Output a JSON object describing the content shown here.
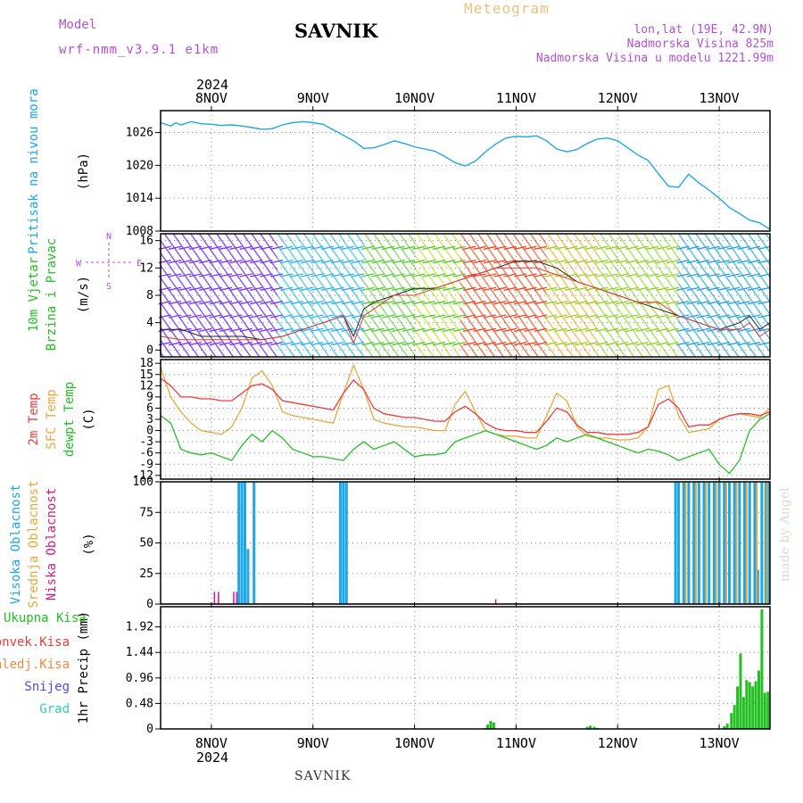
{
  "header": {
    "model_label": "Model",
    "model_name": "wrf-nmm_v3.9.1 e1km",
    "station": "SAVNIK",
    "product": "Meteogram",
    "location": "lon,lat (19E, 42.9N)",
    "elevation": "Nadmorska Visina 825m",
    "model_elevation": "Nadmorska Visina u modelu 1221.99m"
  },
  "footer": {
    "station": "SAVNIK",
    "credit": "made by Angel"
  },
  "colors": {
    "pressure": "#1ea7e8",
    "temp2m": "#ef3b3b",
    "sfc_temp": "#e6a83a",
    "dewpt": "#22c022",
    "cloud_high": "#1ea7e8",
    "cloud_mid": "#e6a83a",
    "cloud_low": "#d01a8a",
    "precip_total": "#22c022",
    "violet": "#b24fd6"
  },
  "chart_data": [
    {
      "id": "pressure",
      "type": "line",
      "ylabel": [
        "Pritisak na nivou mora",
        "(hPa)"
      ],
      "yticks": [
        1008,
        1014,
        1020,
        1026
      ],
      "ylim": [
        1008,
        1030
      ],
      "grid": true,
      "x": [
        7.5,
        7.6,
        7.65,
        7.7,
        7.8,
        7.9,
        8.0,
        8.1,
        8.2,
        8.3,
        8.4,
        8.5,
        8.6,
        8.7,
        8.8,
        8.9,
        9.0,
        9.1,
        9.2,
        9.3,
        9.4,
        9.5,
        9.6,
        9.7,
        9.8,
        9.9,
        10.0,
        10.1,
        10.2,
        10.3,
        10.4,
        10.5,
        10.6,
        10.7,
        10.8,
        10.9,
        11.0,
        11.1,
        11.2,
        11.3,
        11.4,
        11.5,
        11.6,
        11.7,
        11.8,
        11.9,
        12.0,
        12.1,
        12.2,
        12.3,
        12.4,
        12.5,
        12.6,
        12.7,
        12.8,
        12.9,
        13.0,
        13.1,
        13.2,
        13.3,
        13.4,
        13.5
      ],
      "values": [
        1027.8,
        1027.2,
        1027.8,
        1027.4,
        1028.0,
        1027.6,
        1027.5,
        1027.3,
        1027.4,
        1027.2,
        1026.9,
        1026.6,
        1026.7,
        1027.4,
        1027.8,
        1028.0,
        1027.8,
        1027.5,
        1026.5,
        1025.5,
        1024.5,
        1023.1,
        1023.2,
        1023.8,
        1024.5,
        1024.0,
        1023.4,
        1023.0,
        1022.6,
        1021.6,
        1020.5,
        1019.9,
        1020.8,
        1022.5,
        1023.9,
        1025.0,
        1025.3,
        1025.2,
        1025.4,
        1024.5,
        1023.0,
        1022.5,
        1022.9,
        1024.0,
        1024.8,
        1025.0,
        1024.5,
        1023.2,
        1021.9,
        1020.9,
        1018.5,
        1016.2,
        1016.0,
        1018.4,
        1016.8,
        1015.5,
        1014.0,
        1012.3,
        1011.2,
        1010.0,
        1009.5,
        1008.3
      ]
    },
    {
      "id": "wind",
      "type": "line",
      "ylabel": [
        "10m Vjetar",
        "Brzina i Pravac",
        "(m/s)"
      ],
      "legend": [
        "N",
        "S",
        "W",
        "E"
      ],
      "yticks": [
        0,
        4,
        8,
        12,
        16
      ],
      "ylim": [
        -1,
        17
      ],
      "grid": true,
      "x": [
        7.5,
        7.7,
        7.9,
        8.1,
        8.3,
        8.5,
        8.7,
        8.9,
        9.1,
        9.3,
        9.4,
        9.5,
        9.6,
        9.8,
        10.0,
        10.2,
        10.4,
        10.6,
        10.8,
        11.0,
        11.2,
        11.4,
        11.6,
        11.8,
        12.0,
        12.2,
        12.4,
        12.6,
        12.8,
        13.0,
        13.2,
        13.3,
        13.4,
        13.5
      ],
      "speed": [
        3,
        3,
        2,
        2,
        2,
        1.5,
        2,
        3,
        4,
        5,
        2,
        6,
        7,
        8,
        9,
        9,
        10,
        11,
        12,
        13,
        13,
        12,
        10,
        9,
        8,
        7,
        6,
        5,
        4,
        3,
        4,
        5,
        3,
        4
      ],
      "gust": [
        2,
        1.5,
        1.5,
        1.5,
        1.5,
        1.5,
        2,
        3,
        4,
        5,
        1,
        5,
        6,
        8,
        8,
        9,
        10,
        11,
        12,
        12,
        12,
        11,
        10,
        9,
        8,
        7,
        7,
        5,
        4,
        3,
        3,
        4,
        2,
        3
      ]
    },
    {
      "id": "temperature",
      "type": "line",
      "ylabel": [
        "2m Temp",
        "SFC Temp",
        "dewpt Temp",
        "(C)"
      ],
      "yticks": [
        -12,
        -9,
        -6,
        -3,
        0,
        3,
        6,
        9,
        12,
        15,
        18
      ],
      "ylim": [
        -13,
        19
      ],
      "grid": true,
      "x": [
        7.5,
        7.6,
        7.7,
        7.8,
        7.9,
        8.0,
        8.1,
        8.2,
        8.3,
        8.4,
        8.5,
        8.6,
        8.7,
        8.8,
        8.9,
        9.0,
        9.1,
        9.2,
        9.3,
        9.4,
        9.5,
        9.6,
        9.7,
        9.8,
        9.9,
        10.0,
        10.1,
        10.2,
        10.3,
        10.4,
        10.5,
        10.6,
        10.7,
        10.8,
        10.9,
        11.0,
        11.1,
        11.2,
        11.3,
        11.4,
        11.5,
        11.6,
        11.7,
        11.8,
        11.9,
        12.0,
        12.1,
        12.2,
        12.3,
        12.4,
        12.5,
        12.6,
        12.7,
        12.8,
        12.9,
        13.0,
        13.1,
        13.2,
        13.3,
        13.4,
        13.5
      ],
      "series": [
        {
          "name": "2m Temp",
          "values": [
            14,
            12,
            9,
            9,
            8.5,
            8.5,
            8,
            8,
            10,
            12,
            12.5,
            11,
            8,
            7.5,
            7,
            6.5,
            6,
            5.5,
            10,
            13.5,
            11,
            6,
            4.5,
            4,
            3.5,
            3.5,
            3,
            2.5,
            2.5,
            5,
            6.5,
            4.5,
            2,
            0.5,
            0,
            0,
            -0.5,
            -0.5,
            2.5,
            6,
            5,
            1.5,
            -0.5,
            -0.5,
            -1,
            -1,
            -1,
            -0.5,
            1,
            7,
            8.5,
            6,
            1,
            1.5,
            1.5,
            3,
            4,
            4.5,
            4.5,
            4,
            5
          ]
        },
        {
          "name": "SFC Temp",
          "values": [
            17,
            9,
            5,
            2,
            0,
            -0.5,
            -1,
            1,
            6,
            14,
            16,
            12,
            5,
            4,
            3.5,
            3,
            2.5,
            2,
            10,
            17.5,
            11,
            3,
            2,
            1.5,
            1,
            1,
            0.5,
            0,
            0,
            7,
            10.5,
            5,
            0,
            -1,
            -1.5,
            -1.5,
            -2,
            -2,
            4,
            10,
            8,
            1,
            -1.5,
            -2,
            -2,
            -2.5,
            -2.5,
            -2,
            1,
            11,
            12,
            4,
            -0.5,
            0,
            0.5,
            3,
            4,
            4.5,
            4,
            3.5,
            6
          ]
        },
        {
          "name": "dewpt Temp",
          "values": [
            4,
            2,
            -5,
            -6,
            -6.5,
            -6,
            -7,
            -8,
            -4,
            -1,
            -3,
            0,
            -2,
            -5,
            -6,
            -7,
            -7,
            -7.5,
            -8,
            -5,
            -3,
            -5,
            -4,
            -3,
            -5,
            -7,
            -6.5,
            -6.5,
            -6,
            -3,
            -2,
            -1,
            0,
            -1,
            -2,
            -3,
            -4,
            -5,
            -4,
            -2,
            -3,
            -2,
            -1,
            -2,
            -3,
            -4,
            -5,
            -6,
            -5,
            -5.5,
            -6.5,
            -8,
            -7,
            -6,
            -5,
            -9,
            -11.5,
            -8,
            0,
            3,
            4.5
          ]
        }
      ]
    },
    {
      "id": "cloud",
      "type": "bar",
      "ylabel": [
        "Visoka Oblacnost",
        "Srednja Oblacnost",
        "Niska Oblacnost",
        "(%)"
      ],
      "yticks": [
        0,
        25,
        50,
        75,
        100
      ],
      "ylim": [
        0,
        100
      ],
      "grid": true,
      "series": [
        {
          "name": "Visoka Oblacnost",
          "x": [
            8.27,
            8.3,
            8.33,
            8.36,
            8.42,
            9.27,
            9.3,
            9.33,
            12.57,
            12.6,
            12.65,
            12.7,
            12.75,
            12.8,
            12.85,
            12.9,
            12.95,
            13.0,
            13.05,
            13.1,
            13.15,
            13.2,
            13.25,
            13.3,
            13.35,
            13.38,
            13.42,
            13.46,
            13.49
          ],
          "values": [
            100,
            100,
            100,
            45,
            100,
            100,
            100,
            100,
            100,
            100,
            100,
            100,
            100,
            100,
            100,
            100,
            100,
            100,
            100,
            100,
            100,
            100,
            100,
            100,
            100,
            28,
            100,
            100,
            100
          ]
        },
        {
          "name": "Srednja Oblacnost",
          "x": [
            12.67,
            12.77,
            12.87,
            12.97,
            13.07,
            13.17,
            13.27,
            13.37,
            13.47
          ],
          "values": [
            100,
            100,
            100,
            100,
            100,
            100,
            100,
            100,
            100
          ]
        },
        {
          "name": "Niska Oblacnost",
          "x": [
            8.03,
            8.07,
            8.22,
            8.25,
            10.8
          ],
          "values": [
            10,
            10,
            10,
            10,
            4
          ]
        }
      ]
    },
    {
      "id": "precip",
      "type": "bar",
      "ylabel": [
        "1hr Precip (mm)"
      ],
      "legend": [
        "Ukupna Kisa",
        "Konvek.Kisa",
        "Zaledj.Kisa",
        "Snijeg",
        "Grad"
      ],
      "yticks": [
        0,
        0.48,
        0.96,
        1.44,
        1.92
      ],
      "ylim": [
        0,
        2.3
      ],
      "grid": true,
      "x": [
        10.7,
        10.72,
        10.75,
        10.78,
        11.0,
        11.7,
        11.73,
        11.77,
        11.8,
        13.05,
        13.08,
        13.12,
        13.15,
        13.18,
        13.21,
        13.24,
        13.27,
        13.3,
        13.33,
        13.36,
        13.39,
        13.42,
        13.45,
        13.48
      ],
      "values": [
        0.02,
        0.08,
        0.15,
        0.12,
        0.02,
        0.04,
        0.06,
        0.04,
        0.02,
        0.05,
        0.1,
        0.3,
        0.45,
        0.8,
        1.42,
        0.6,
        0.92,
        0.88,
        0.8,
        0.9,
        1.1,
        2.25,
        0.68,
        0.7
      ]
    }
  ],
  "time_axis": {
    "year": "2024",
    "labels": [
      "8NOV",
      "9NOV",
      "10NOV",
      "11NOV",
      "12NOV",
      "13NOV"
    ],
    "ticks": [
      8,
      9,
      10,
      11,
      12,
      13
    ],
    "range": [
      7.5,
      13.5
    ]
  }
}
